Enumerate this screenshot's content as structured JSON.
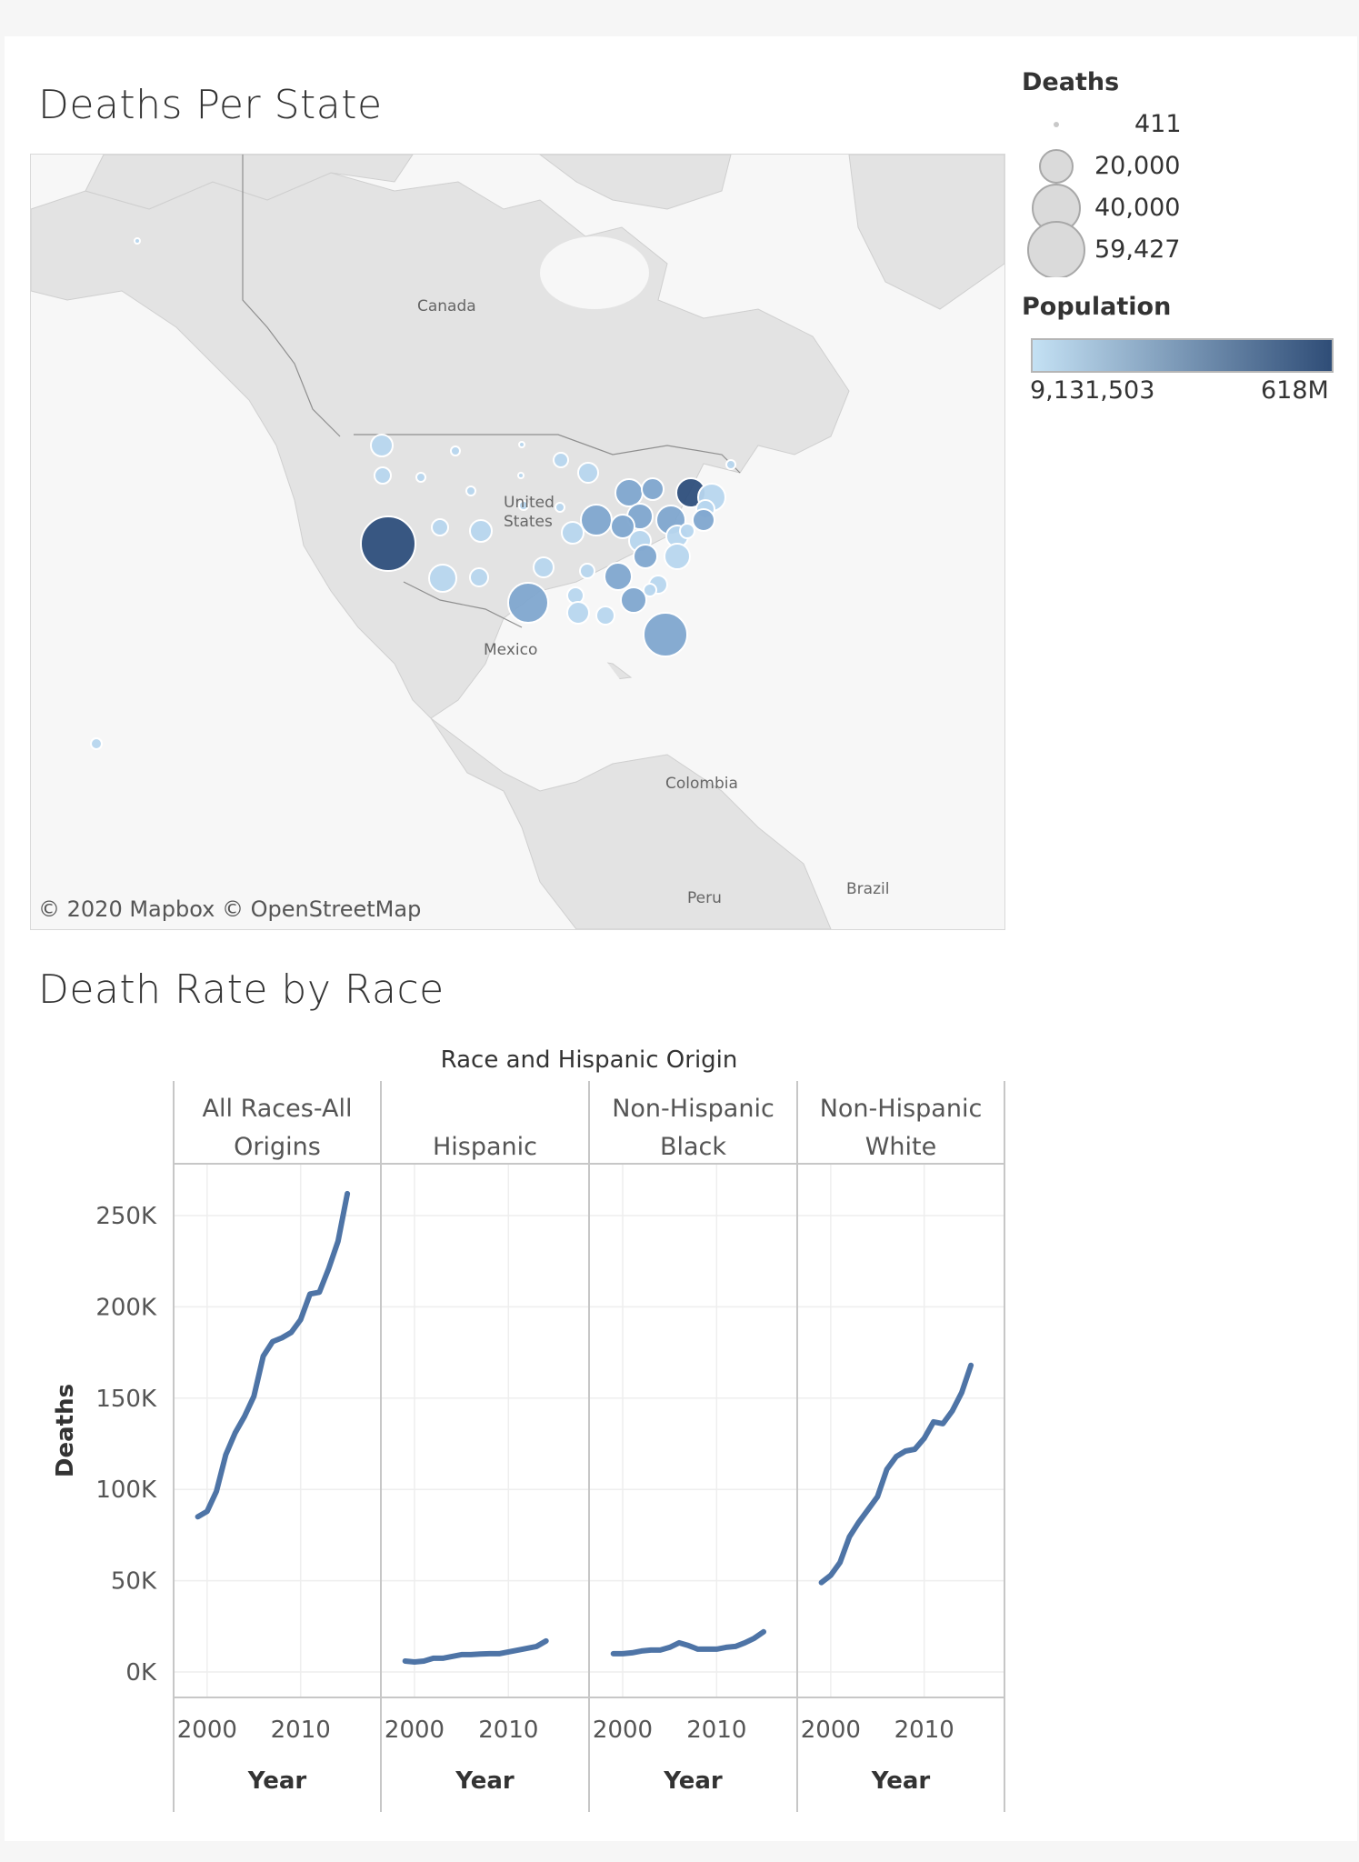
{
  "map_panel": {
    "title": "Deaths Per State",
    "attribution": "© 2020 Mapbox  © OpenStreetMap",
    "place_labels": [
      "Canada",
      "United States",
      "Mexico",
      "Colombia",
      "Peru",
      "Brazil"
    ],
    "colors": {
      "light": "#b7d6ee",
      "mid": "#7fa6cf",
      "dark": "#2e4f7c",
      "land": "#e2e2e2",
      "water": "#f7f7f7"
    }
  },
  "legend": {
    "deaths": {
      "title": "Deaths",
      "entries": [
        {
          "label": "411",
          "value": 411
        },
        {
          "label": "20,000",
          "value": 20000
        },
        {
          "label": "40,000",
          "value": 40000
        },
        {
          "label": "59,427",
          "value": 59427
        }
      ]
    },
    "population": {
      "title": "Population",
      "min_label": "9,131,503",
      "max_label": "618M",
      "colors": [
        "#c4e1f4",
        "#2f4d77"
      ]
    }
  },
  "chart_panel": {
    "title": "Death Rate by Race"
  },
  "chart_data": {
    "type": "line",
    "title": "Race and Hispanic Origin",
    "xlabel": "Year",
    "ylabel": "Deaths",
    "ylim": [
      0,
      270000
    ],
    "yticks": [
      {
        "value": 0,
        "label": "0K"
      },
      {
        "value": 50000,
        "label": "50K"
      },
      {
        "value": 100000,
        "label": "100K"
      },
      {
        "value": 150000,
        "label": "150K"
      },
      {
        "value": 200000,
        "label": "200K"
      },
      {
        "value": 250000,
        "label": "250K"
      }
    ],
    "xticks": [
      2000,
      2010
    ],
    "xlim": [
      1997,
      2018
    ],
    "line_color": "#4e74a6",
    "years": [
      1999,
      2000,
      2001,
      2002,
      2003,
      2004,
      2005,
      2006,
      2007,
      2008,
      2009,
      2010,
      2011,
      2012,
      2013,
      2014,
      2015,
      2016
    ],
    "series": [
      {
        "name": "All Races-All Origins",
        "values": [
          85000,
          88000,
          99000,
          119000,
          131000,
          140000,
          151000,
          173000,
          181000,
          183000,
          186000,
          193000,
          207000,
          208000,
          221000,
          236000,
          262000,
          null
        ]
      },
      {
        "name": "Hispanic",
        "values": [
          6000,
          5500,
          6000,
          7500,
          7500,
          8500,
          9500,
          9500,
          9800,
          10000,
          10000,
          11000,
          12000,
          13000,
          14000,
          17000,
          null,
          null
        ]
      },
      {
        "name": "Non-Hispanic Black",
        "values": [
          10000,
          10000,
          10500,
          11500,
          12000,
          12000,
          13500,
          16000,
          14500,
          12500,
          12500,
          12500,
          13500,
          14000,
          16000,
          18500,
          22000,
          null
        ]
      },
      {
        "name": "Non-Hispanic White",
        "values": [
          49000,
          53000,
          60000,
          74000,
          82000,
          89000,
          96000,
          111000,
          118000,
          121000,
          122000,
          128000,
          137000,
          136000,
          143000,
          153000,
          168000,
          null
        ]
      }
    ],
    "panel_labels": [
      [
        "All Races-All",
        "Origins"
      ],
      [
        "",
        "Hispanic"
      ],
      [
        "Non-Hispanic",
        "Black"
      ],
      [
        "Non-Hispanic",
        "White"
      ]
    ],
    "grid": true
  }
}
